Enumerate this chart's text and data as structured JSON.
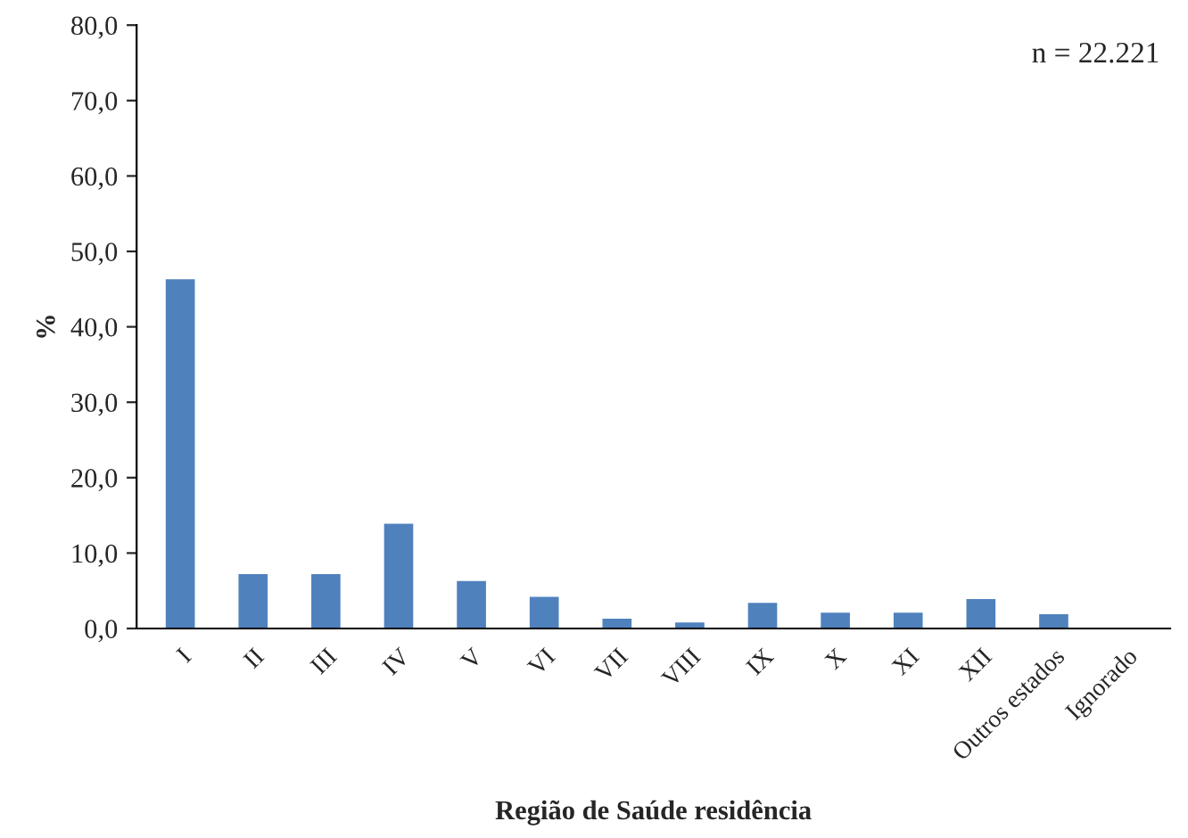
{
  "chart_data": {
    "type": "bar",
    "xlabel": "Região de Saúde residência",
    "ylabel": "%",
    "categories": [
      "I",
      "II",
      "III",
      "IV",
      "V",
      "VI",
      "VII",
      "VIII",
      "IX",
      "X",
      "XI",
      "XII",
      "Outros estados",
      "Ignorado"
    ],
    "values": [
      46.3,
      7.2,
      7.2,
      13.9,
      6.3,
      4.2,
      1.3,
      0.8,
      3.4,
      2.1,
      2.1,
      3.9,
      1.9,
      0
    ],
    "color": "#4f81bd",
    "ylim": [
      0,
      80
    ],
    "yticks": [
      {
        "value": 0,
        "label": "0,0"
      },
      {
        "value": 10,
        "label": "10,0"
      },
      {
        "value": 20,
        "label": "20,0"
      },
      {
        "value": 30,
        "label": "30,0"
      },
      {
        "value": 40,
        "label": "40,0"
      },
      {
        "value": 50,
        "label": "50,0"
      },
      {
        "value": 60,
        "label": "60,0"
      },
      {
        "value": 70,
        "label": "70,0"
      },
      {
        "value": 80,
        "label": "80,0"
      }
    ],
    "annotations": [
      "n = 22.221"
    ],
    "grid": false,
    "legend": false
  }
}
